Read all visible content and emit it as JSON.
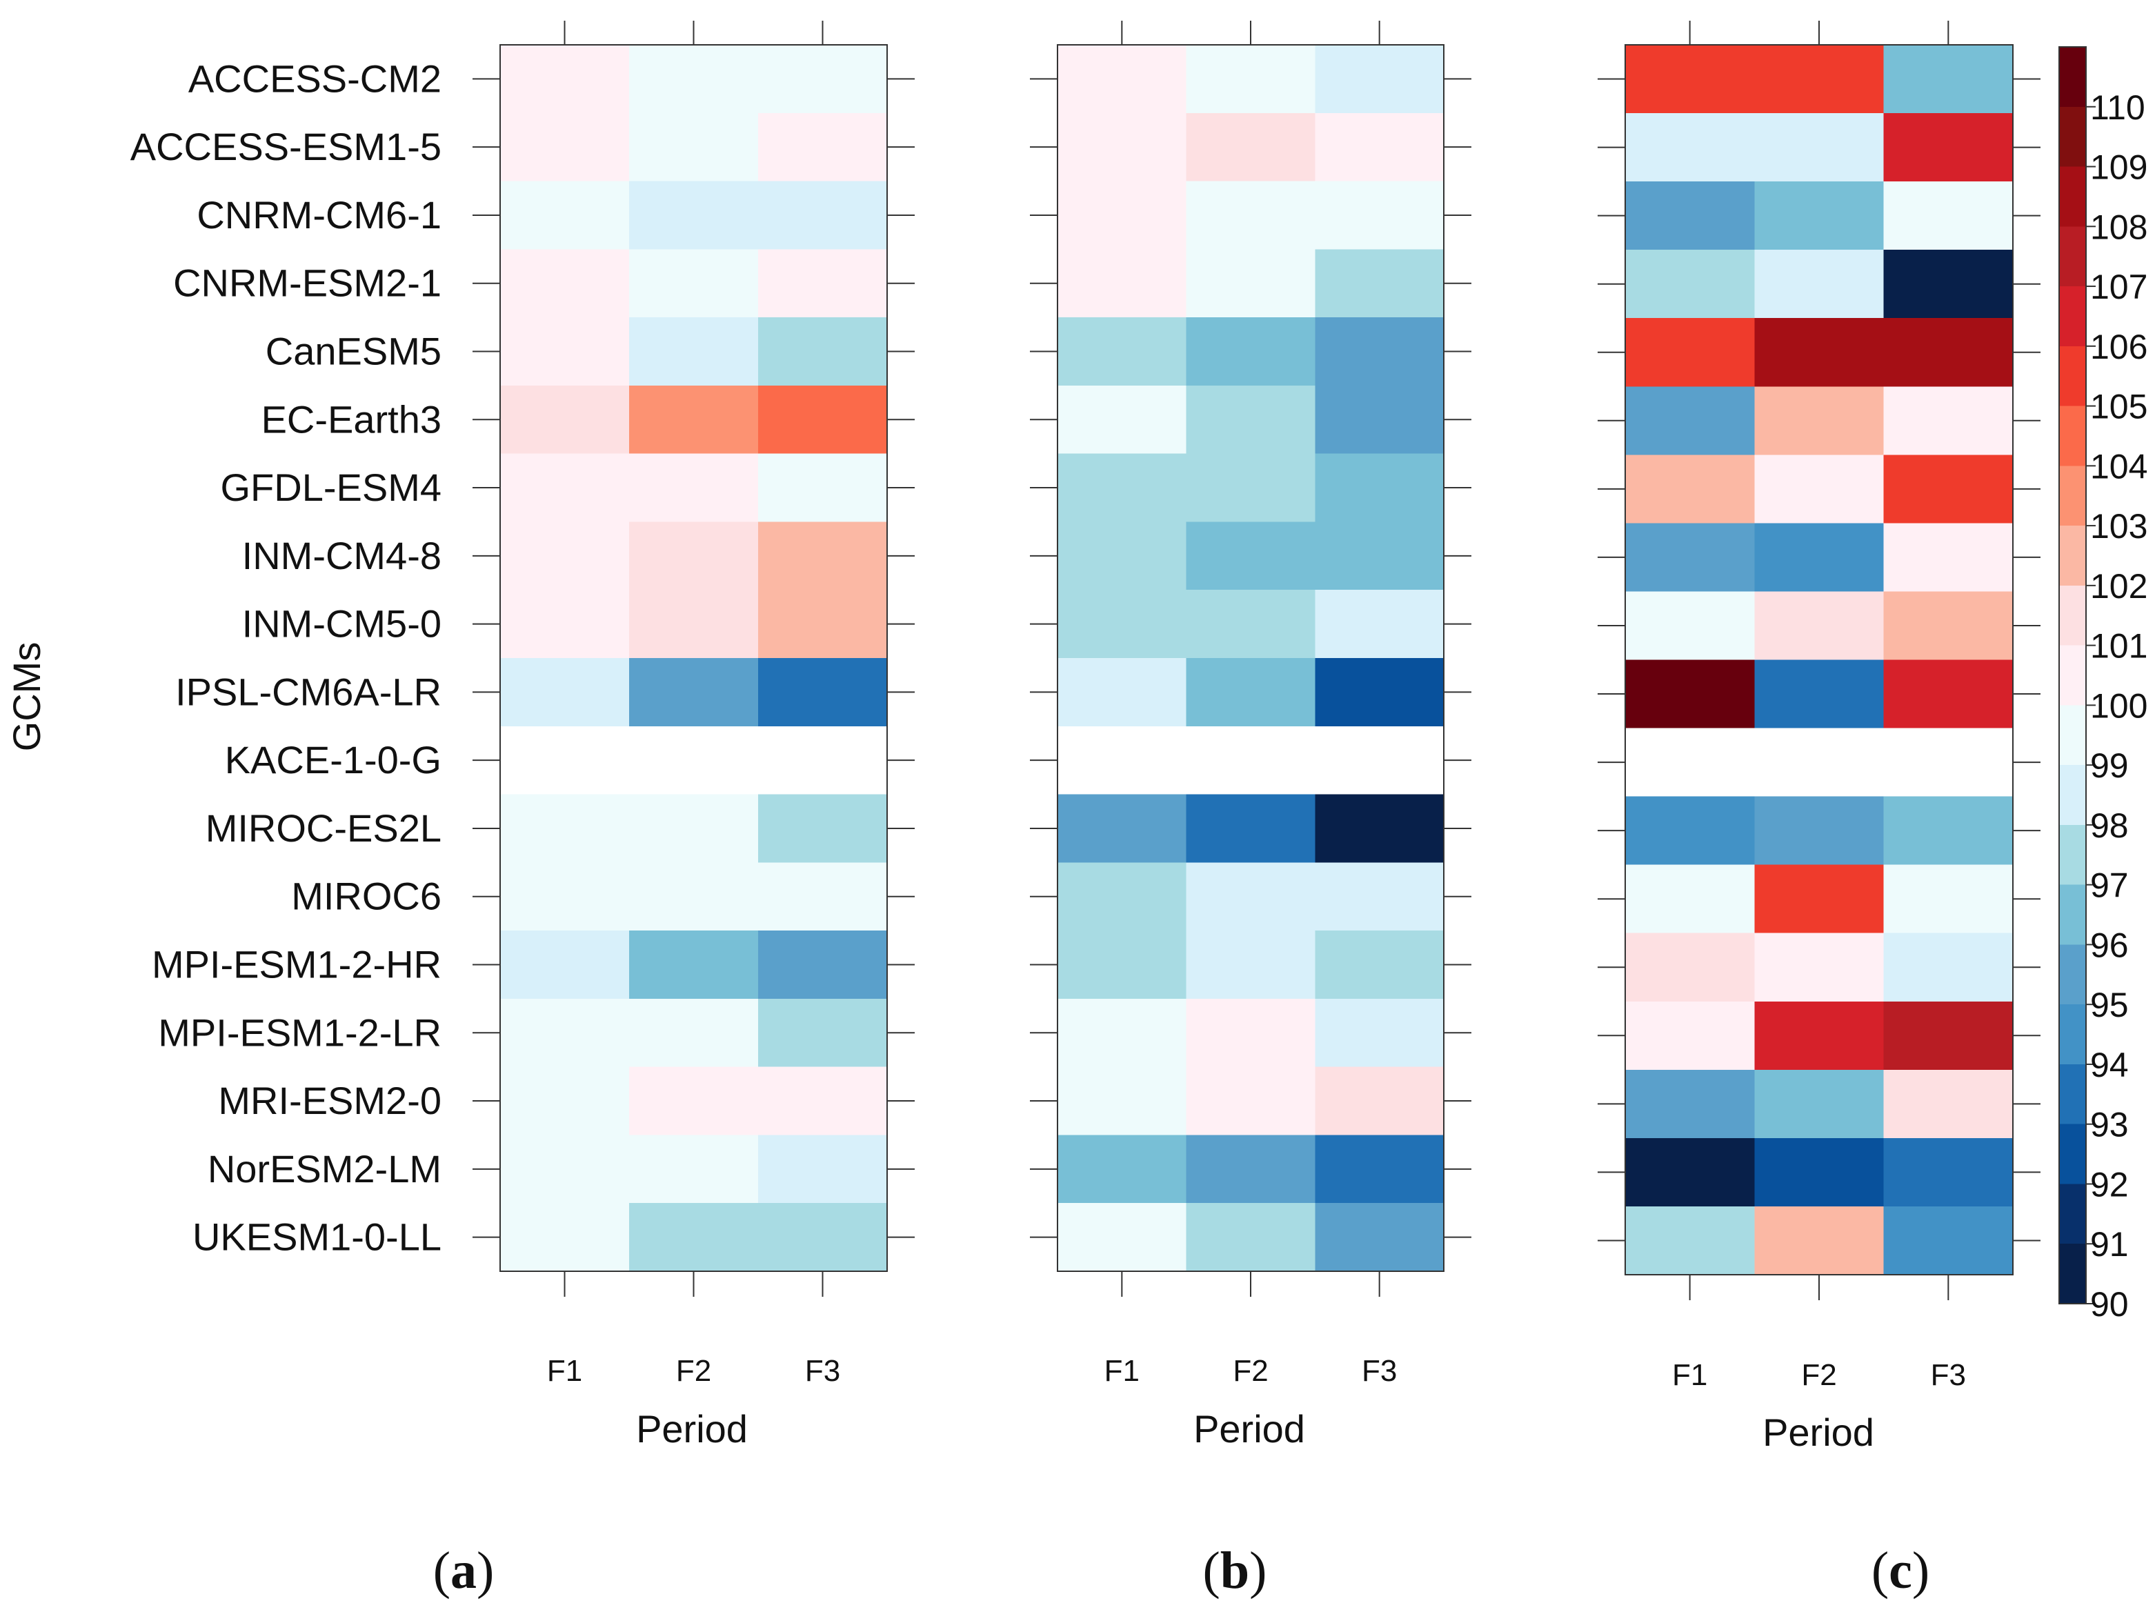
{
  "chart_data": [
    {
      "type": "heatmap",
      "panel_label": "a",
      "xlabel": "Period",
      "ylabel": "GCMs",
      "x": [
        "F1",
        "F2",
        "F3"
      ],
      "y": [
        "ACCESS-CM2",
        "ACCESS-ESM1-5",
        "CNRM-CM6-1",
        "CNRM-ESM2-1",
        "CanESM5",
        "EC-Earth3",
        "GFDL-ESM4",
        "INM-CM4-8",
        "INM-CM5-0",
        "IPSL-CM6A-LR",
        "KACE-1-0-G",
        "MIROC-ES2L",
        "MIROC6",
        "MPI-ESM1-2-HR",
        "MPI-ESM1-2-LR",
        "MRI-ESM2-0",
        "NorESM2-LM",
        "UKESM1-0-LL"
      ],
      "values": [
        [
          100,
          99,
          99
        ],
        [
          100,
          99,
          100
        ],
        [
          99,
          98,
          98
        ],
        [
          100,
          99,
          100
        ],
        [
          100,
          98,
          97
        ],
        [
          101,
          103,
          104
        ],
        [
          100,
          100,
          99
        ],
        [
          100,
          101,
          102
        ],
        [
          100,
          101,
          102
        ],
        [
          98,
          95,
          93
        ],
        [
          null,
          null,
          null
        ],
        [
          99,
          99,
          97
        ],
        [
          99,
          99,
          99
        ],
        [
          98,
          96,
          95
        ],
        [
          99,
          99,
          97
        ],
        [
          99,
          100,
          100
        ],
        [
          99,
          99,
          98
        ],
        [
          99,
          97,
          97
        ]
      ]
    },
    {
      "type": "heatmap",
      "panel_label": "b",
      "xlabel": "Period",
      "x": [
        "F1",
        "F2",
        "F3"
      ],
      "y": [
        "ACCESS-CM2",
        "ACCESS-ESM1-5",
        "CNRM-CM6-1",
        "CNRM-ESM2-1",
        "CanESM5",
        "EC-Earth3",
        "GFDL-ESM4",
        "INM-CM4-8",
        "INM-CM5-0",
        "IPSL-CM6A-LR",
        "KACE-1-0-G",
        "MIROC-ES2L",
        "MIROC6",
        "MPI-ESM1-2-HR",
        "MPI-ESM1-2-LR",
        "MRI-ESM2-0",
        "NorESM2-LM",
        "UKESM1-0-LL"
      ],
      "values": [
        [
          100,
          99,
          98
        ],
        [
          100,
          101,
          100
        ],
        [
          100,
          99,
          99
        ],
        [
          100,
          99,
          97
        ],
        [
          97,
          96,
          95
        ],
        [
          99,
          97,
          95
        ],
        [
          97,
          97,
          96
        ],
        [
          97,
          96,
          96
        ],
        [
          97,
          97,
          98
        ],
        [
          98,
          96,
          92
        ],
        [
          null,
          null,
          null
        ],
        [
          95,
          93,
          90
        ],
        [
          97,
          98,
          98
        ],
        [
          97,
          98,
          97
        ],
        [
          99,
          100,
          98
        ],
        [
          99,
          100,
          101
        ],
        [
          96,
          95,
          93
        ],
        [
          99,
          97,
          95
        ]
      ]
    },
    {
      "type": "heatmap",
      "panel_label": "c",
      "xlabel": "Period",
      "x": [
        "F1",
        "F2",
        "F3"
      ],
      "y": [
        "ACCESS-CM2",
        "ACCESS-ESM1-5",
        "CNRM-CM6-1",
        "CNRM-ESM2-1",
        "CanESM5",
        "EC-Earth3",
        "GFDL-ESM4",
        "INM-CM4-8",
        "INM-CM5-0",
        "IPSL-CM6A-LR",
        "KACE-1-0-G",
        "MIROC-ES2L",
        "MIROC6",
        "MPI-ESM1-2-HR",
        "MPI-ESM1-2-LR",
        "MRI-ESM2-0",
        "NorESM2-LM",
        "UKESM1-0-LL"
      ],
      "values": [
        [
          105,
          105,
          96
        ],
        [
          98,
          98,
          106
        ],
        [
          95,
          96,
          99
        ],
        [
          97,
          98,
          90
        ],
        [
          105,
          108,
          108
        ],
        [
          95,
          102,
          100
        ],
        [
          102,
          100,
          105
        ],
        [
          95,
          94,
          100
        ],
        [
          99,
          101,
          102
        ],
        [
          110,
          93,
          106
        ],
        [
          null,
          null,
          null
        ],
        [
          94,
          95,
          96
        ],
        [
          99,
          105,
          99
        ],
        [
          101,
          100,
          98
        ],
        [
          100,
          106,
          107
        ],
        [
          95,
          96,
          101
        ],
        [
          90,
          92,
          93
        ],
        [
          97,
          102,
          94
        ]
      ]
    }
  ],
  "colorbar": {
    "labels": [
      "110",
      "109",
      "108",
      "107",
      "106",
      "105",
      "104",
      "103",
      "102",
      "101",
      "100",
      "99",
      "98",
      "97",
      "96",
      "95",
      "94",
      "93",
      "92",
      "91",
      "90"
    ],
    "scale": [
      90,
      91,
      92,
      93,
      94,
      95,
      96,
      97,
      98,
      99,
      100,
      101,
      102,
      103,
      104,
      105,
      106,
      107,
      108,
      109,
      110
    ],
    "colors": [
      "#08204a",
      "#08306b",
      "#08519c",
      "#2171b5",
      "#4292c6",
      "#5aa0cb",
      "#78bfd6",
      "#a8dbe3",
      "#d8f0fa",
      "#eefbfc",
      "#fff0f5",
      "#fde0e2",
      "#fbb8a4",
      "#fc9272",
      "#fb6a4a",
      "#ef3b2c",
      "#d6212a",
      "#b81d24",
      "#a50f15",
      "#800f0f",
      "#67000d"
    ]
  }
}
